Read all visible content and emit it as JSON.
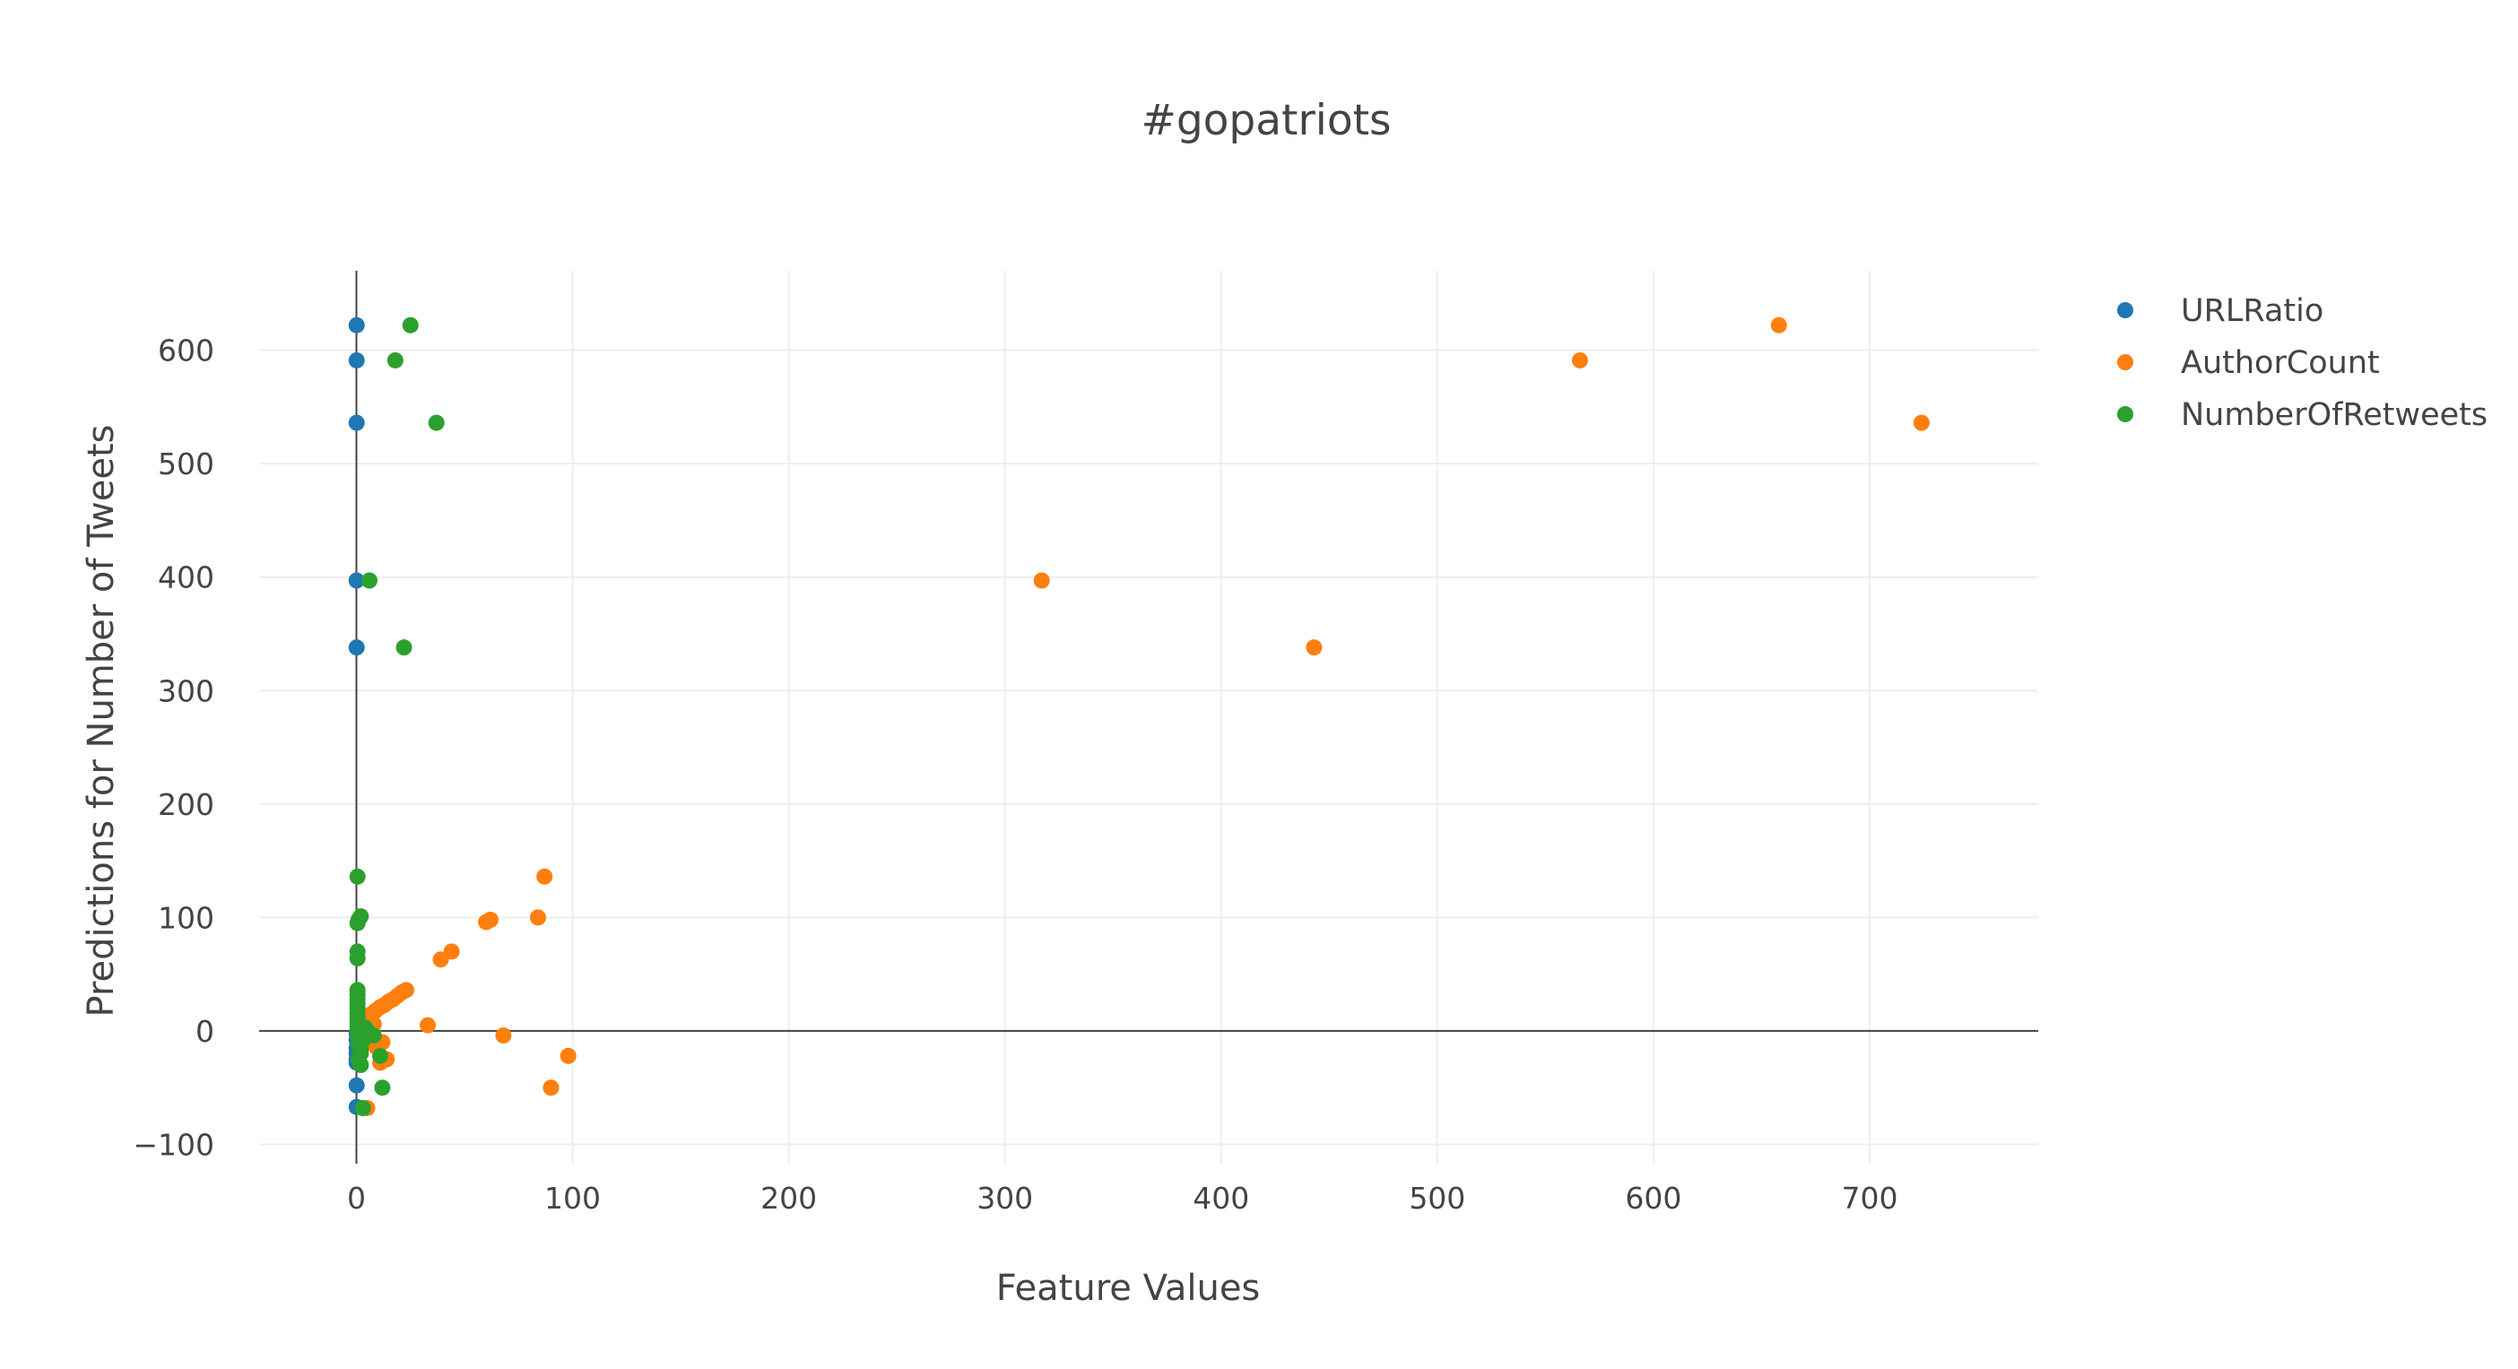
{
  "chart_data": {
    "type": "scatter",
    "title": "#gopatriots",
    "xlabel": "Feature Values",
    "ylabel": "Predictions for Number of Tweets",
    "xlim": [
      -45,
      778
    ],
    "ylim": [
      -117,
      670
    ],
    "x_ticks": [
      0,
      100,
      200,
      300,
      400,
      500,
      600,
      700
    ],
    "y_ticks": [
      -100,
      0,
      100,
      200,
      300,
      400,
      500,
      600
    ],
    "x_tick_labels": [
      "0",
      "100",
      "200",
      "300",
      "400",
      "500",
      "600",
      "700"
    ],
    "y_tick_labels": [
      "−100",
      "0",
      "100",
      "200",
      "300",
      "400",
      "500",
      "600"
    ],
    "grid": true,
    "legend_position": "top-right",
    "series": [
      {
        "name": "URLRatio",
        "color": "#1f77b4",
        "points": [
          [
            0.1,
            622
          ],
          [
            0.1,
            591
          ],
          [
            0.1,
            536
          ],
          [
            0.1,
            397
          ],
          [
            0.1,
            338
          ],
          [
            0.1,
            -2
          ],
          [
            0.1,
            -8
          ],
          [
            0.1,
            -15
          ],
          [
            0.1,
            -20
          ],
          [
            0.1,
            -25
          ],
          [
            0.1,
            -28
          ],
          [
            0.1,
            -48
          ],
          [
            0.1,
            -67
          ]
        ]
      },
      {
        "name": "AuthorCount",
        "color": "#ff7f0e",
        "points": [
          [
            658,
            622
          ],
          [
            566,
            591
          ],
          [
            724,
            536
          ],
          [
            317,
            397
          ],
          [
            443,
            338
          ],
          [
            87,
            136
          ],
          [
            62,
            98
          ],
          [
            60,
            96
          ],
          [
            84,
            100
          ],
          [
            44,
            70
          ],
          [
            39,
            63
          ],
          [
            23,
            36
          ],
          [
            21,
            34
          ],
          [
            19,
            31
          ],
          [
            17,
            28
          ],
          [
            15,
            26
          ],
          [
            13,
            23
          ],
          [
            11,
            21
          ],
          [
            9,
            18
          ],
          [
            7,
            15
          ],
          [
            5,
            12
          ],
          [
            4,
            10
          ],
          [
            6,
            8
          ],
          [
            8,
            6
          ],
          [
            33,
            5
          ],
          [
            68,
            -4
          ],
          [
            98,
            -22
          ],
          [
            90,
            -50
          ],
          [
            14,
            -25
          ],
          [
            11,
            -28
          ],
          [
            9,
            -14
          ],
          [
            12,
            -10
          ],
          [
            7,
            -3
          ],
          [
            5,
            -68
          ],
          [
            3,
            -1
          ],
          [
            2,
            2
          ]
        ]
      },
      {
        "name": "NumberOfRetweets",
        "color": "#2ca02c",
        "points": [
          [
            25,
            622
          ],
          [
            18,
            591
          ],
          [
            37,
            536
          ],
          [
            6,
            397
          ],
          [
            22,
            338
          ],
          [
            0.5,
            136
          ],
          [
            2,
            101
          ],
          [
            1,
            98
          ],
          [
            0.5,
            95
          ],
          [
            0.5,
            70
          ],
          [
            0.5,
            64
          ],
          [
            0.5,
            36
          ],
          [
            0.5,
            32
          ],
          [
            0.5,
            28
          ],
          [
            0.5,
            24
          ],
          [
            0.5,
            20
          ],
          [
            0.5,
            16
          ],
          [
            0.5,
            12
          ],
          [
            0.5,
            8
          ],
          [
            0.5,
            4
          ],
          [
            0.5,
            0
          ],
          [
            1,
            -4
          ],
          [
            1,
            -8
          ],
          [
            1,
            -12
          ],
          [
            2,
            -16
          ],
          [
            2,
            -20
          ],
          [
            1,
            -25
          ],
          [
            2,
            -30
          ],
          [
            6,
            -2
          ],
          [
            4,
            3
          ],
          [
            8,
            -4
          ],
          [
            11,
            -22
          ],
          [
            12,
            -50
          ],
          [
            3,
            -68
          ],
          [
            2,
            -14
          ],
          [
            3,
            -8
          ]
        ]
      }
    ]
  }
}
